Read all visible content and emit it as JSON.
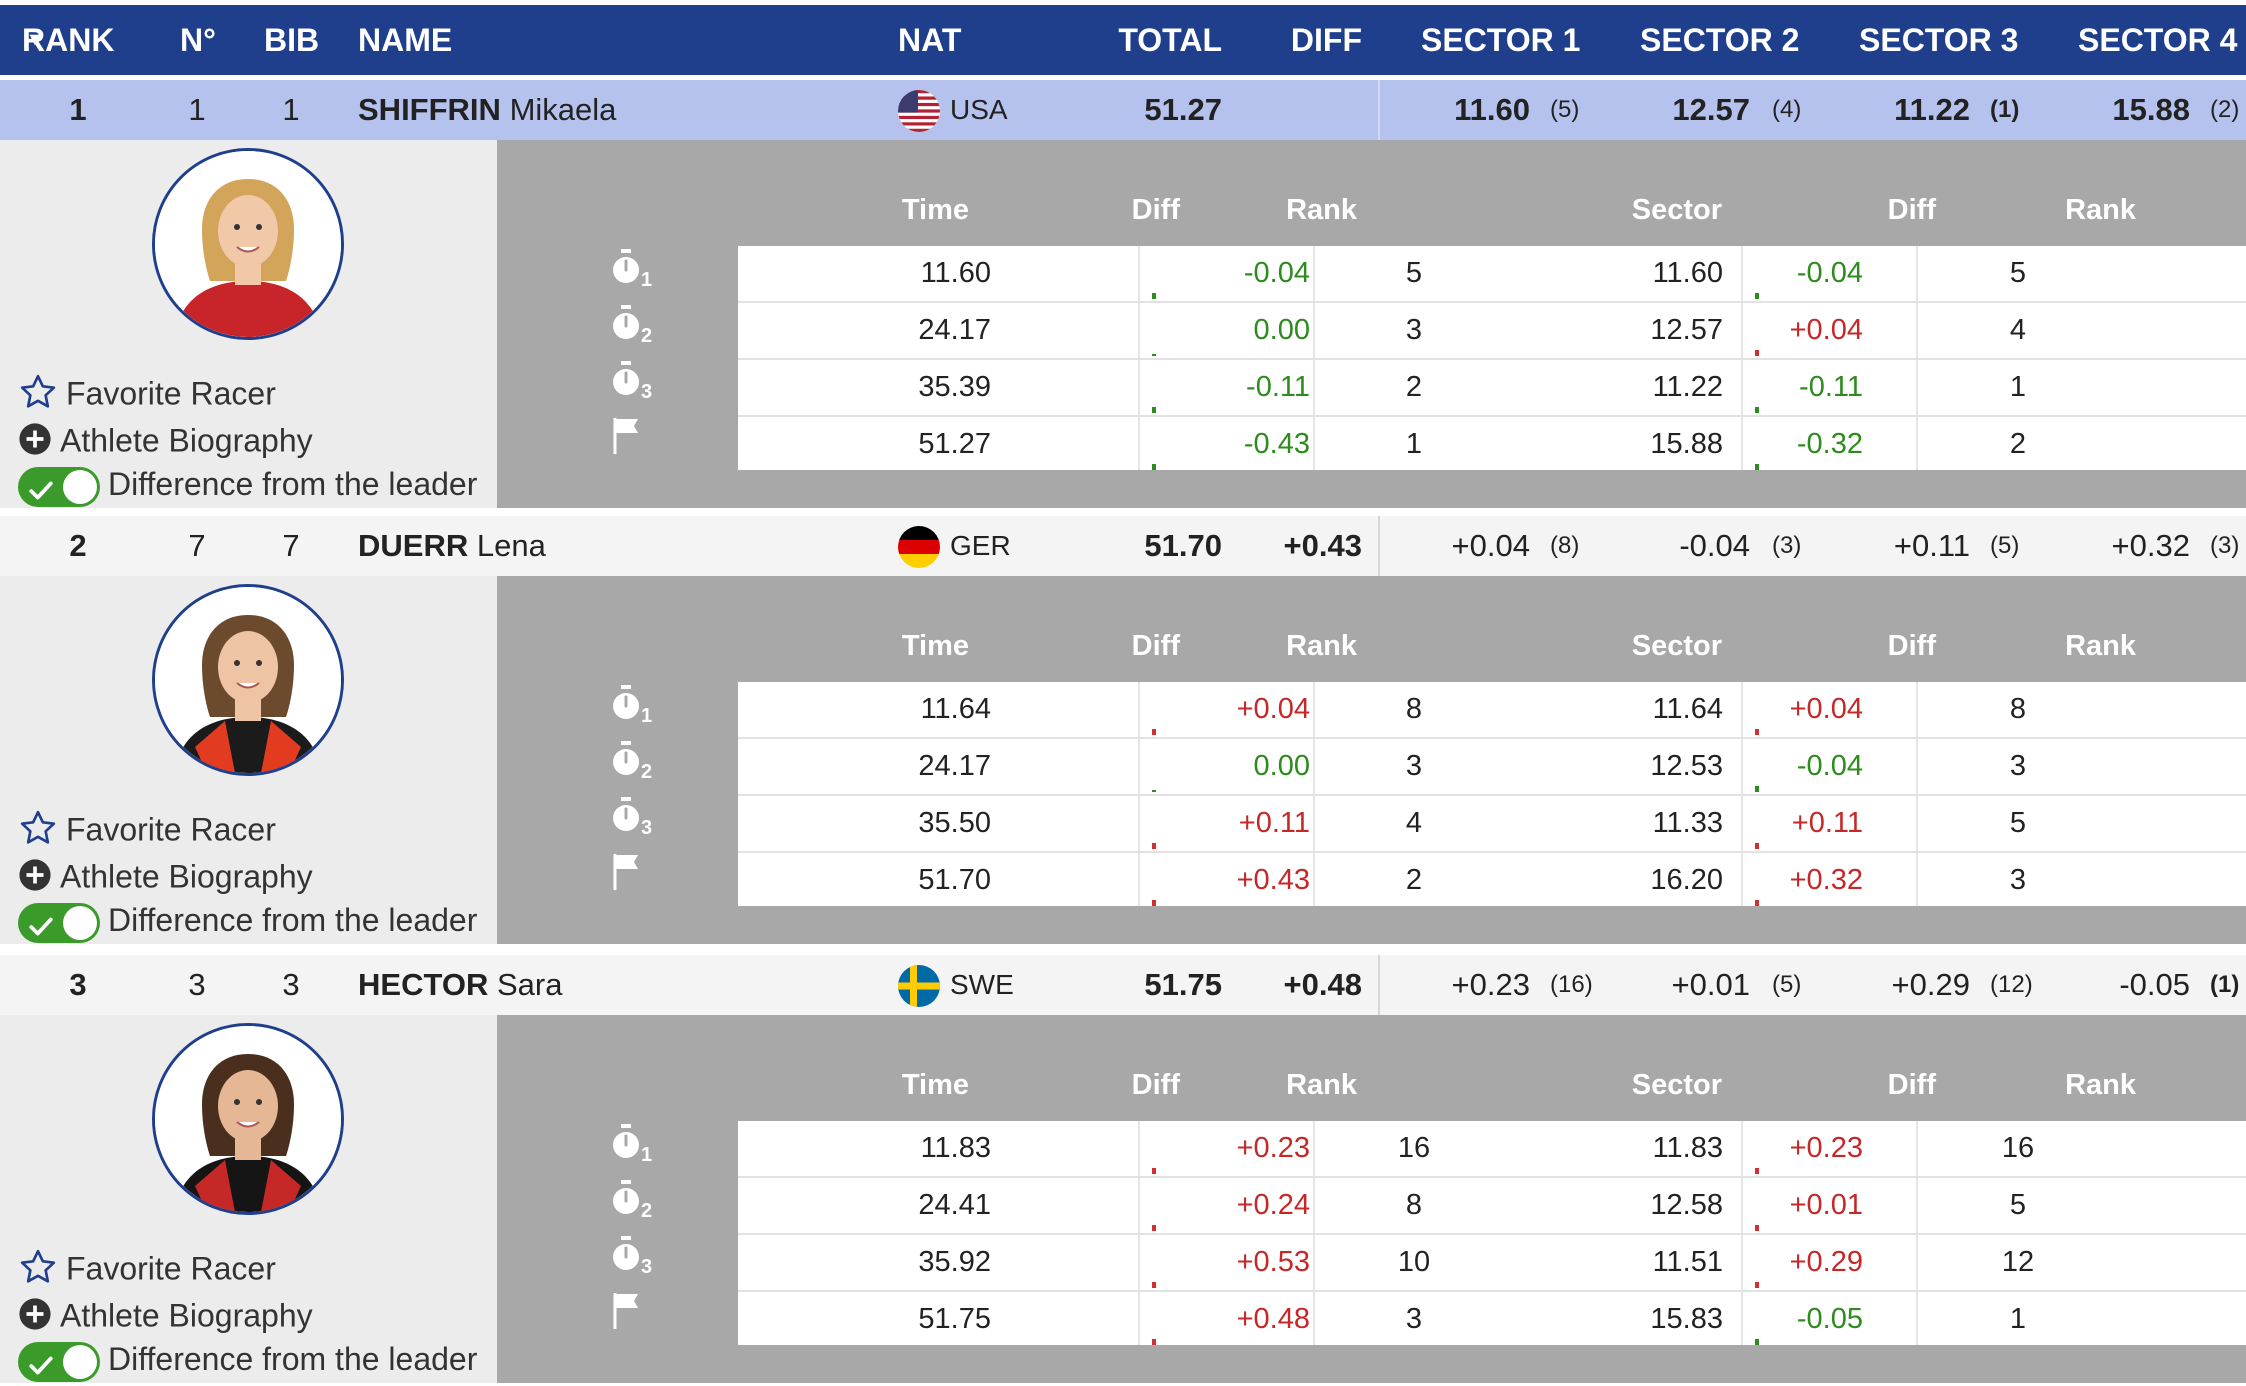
{
  "header": {
    "rank": "RANK",
    "num": "N°",
    "bib": "BIB",
    "name": "NAME",
    "nat": "NAT",
    "total": "TOTAL",
    "diff": "DIFF",
    "sector1": "SECTOR 1",
    "sector2": "SECTOR 2",
    "sector3": "SECTOR 3",
    "sector4": "SECTOR 4"
  },
  "detail_headers": {
    "time": "Time",
    "diff": "Diff",
    "rank": "Rank",
    "sector": "Sector",
    "sdiff": "Diff",
    "srank": "Rank"
  },
  "links": {
    "favorite": "Favorite Racer",
    "biography": "Athlete Biography",
    "difference": "Difference from the leader"
  },
  "icons": {
    "split_icon": "stopwatch-icon",
    "finish_icon": "finish-flag-icon",
    "split_subscripts": [
      "1",
      "2",
      "3"
    ]
  },
  "colors": {
    "header_bg": "#1f3f8c",
    "leader_row_bg": "#b5c2ee",
    "positive_diff": "#c62828",
    "negative_diff": "#2e8b1e",
    "toggle_on": "#3a9a2a"
  },
  "racers": [
    {
      "rank": "1",
      "num": "1",
      "bib": "1",
      "surname": "SHIFFRIN",
      "firstname": "Mikaela",
      "nat": "USA",
      "total": "51.27",
      "diff": "",
      "sectors": [
        {
          "value": "11.60",
          "rank": "(5)"
        },
        {
          "value": "12.57",
          "rank": "(4)"
        },
        {
          "value": "11.22",
          "rank": "(1)"
        },
        {
          "value": "15.88",
          "rank": "(2)"
        }
      ],
      "splits": [
        {
          "time": "11.60",
          "diff": "-0.04",
          "rank": "5",
          "sector": "11.60",
          "sdiff": "-0.04",
          "srank": "5"
        },
        {
          "time": "24.17",
          "diff": "0.00",
          "rank": "3",
          "sector": "12.57",
          "sdiff": "+0.04",
          "srank": "4"
        },
        {
          "time": "35.39",
          "diff": "-0.11",
          "rank": "2",
          "sector": "11.22",
          "sdiff": "-0.11",
          "srank": "1"
        },
        {
          "time": "51.27",
          "diff": "-0.43",
          "rank": "1",
          "sector": "15.88",
          "sdiff": "-0.32",
          "srank": "2"
        }
      ]
    },
    {
      "rank": "2",
      "num": "7",
      "bib": "7",
      "surname": "DUERR",
      "firstname": "Lena",
      "nat": "GER",
      "total": "51.70",
      "diff": "+0.43",
      "sectors": [
        {
          "value": "+0.04",
          "rank": "(8)"
        },
        {
          "value": "-0.04",
          "rank": "(3)"
        },
        {
          "value": "+0.11",
          "rank": "(5)"
        },
        {
          "value": "+0.32",
          "rank": "(3)"
        }
      ],
      "splits": [
        {
          "time": "11.64",
          "diff": "+0.04",
          "rank": "8",
          "sector": "11.64",
          "sdiff": "+0.04",
          "srank": "8"
        },
        {
          "time": "24.17",
          "diff": "0.00",
          "rank": "3",
          "sector": "12.53",
          "sdiff": "-0.04",
          "srank": "3"
        },
        {
          "time": "35.50",
          "diff": "+0.11",
          "rank": "4",
          "sector": "11.33",
          "sdiff": "+0.11",
          "srank": "5"
        },
        {
          "time": "51.70",
          "diff": "+0.43",
          "rank": "2",
          "sector": "16.20",
          "sdiff": "+0.32",
          "srank": "3"
        }
      ]
    },
    {
      "rank": "3",
      "num": "3",
      "bib": "3",
      "surname": "HECTOR",
      "firstname": "Sara",
      "nat": "SWE",
      "total": "51.75",
      "diff": "+0.48",
      "sectors": [
        {
          "value": "+0.23",
          "rank": "(16)"
        },
        {
          "value": "+0.01",
          "rank": "(5)"
        },
        {
          "value": "+0.29",
          "rank": "(12)"
        },
        {
          "value": "-0.05",
          "rank": "(1)"
        }
      ],
      "splits": [
        {
          "time": "11.83",
          "diff": "+0.23",
          "rank": "16",
          "sector": "11.83",
          "sdiff": "+0.23",
          "srank": "16"
        },
        {
          "time": "24.41",
          "diff": "+0.24",
          "rank": "8",
          "sector": "12.58",
          "sdiff": "+0.01",
          "srank": "5"
        },
        {
          "time": "35.92",
          "diff": "+0.53",
          "rank": "10",
          "sector": "11.51",
          "sdiff": "+0.29",
          "srank": "12"
        },
        {
          "time": "51.75",
          "diff": "+0.48",
          "rank": "3",
          "sector": "15.83",
          "sdiff": "-0.05",
          "srank": "1"
        }
      ]
    }
  ]
}
